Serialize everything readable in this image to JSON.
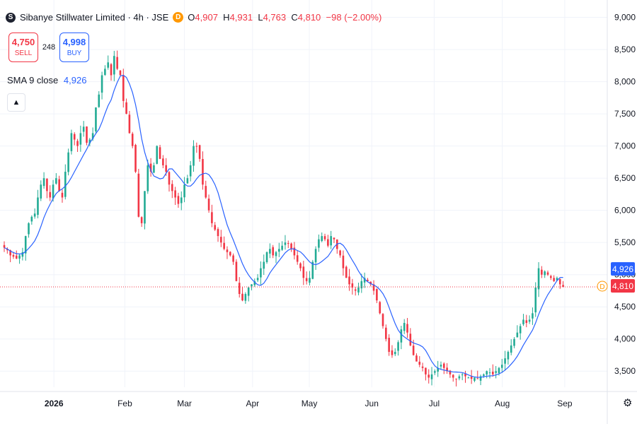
{
  "header": {
    "logo_letter": "S",
    "symbol": "Sibanye Stillwater Limited",
    "interval": "4h",
    "exchange": "JSE",
    "title_line": "Sibanye Stillwater Limited · 4h · JSE",
    "badge": "D",
    "o_label": "O",
    "o_value": "4,907",
    "h_label": "H",
    "h_value": "4,931",
    "l_label": "L",
    "l_value": "4,763",
    "c_label": "C",
    "c_value": "4,810",
    "change": "−98 (−2.00%)"
  },
  "trade": {
    "sell_price": "4,750",
    "sell_label": "SELL",
    "spread": "248",
    "buy_price": "4,998",
    "buy_label": "BUY"
  },
  "indicator": {
    "label": "SMA 9 close",
    "value": "4,926",
    "collapse_icon": "chevron-up-icon"
  },
  "price_scale": {
    "last_price_label": "4,810",
    "sma_label": "4,926",
    "dividend_marker": "D",
    "colors": {
      "up": "#22ab94",
      "down": "#f23645",
      "sma": "#2962ff",
      "last": "#f23645"
    }
  },
  "chart_data": {
    "type": "candlestick",
    "title": "Sibanye Stillwater Limited · 4h · JSE",
    "y_ticks": [
      3500,
      4000,
      4500,
      5000,
      5500,
      6000,
      6500,
      7000,
      7500,
      8000,
      8500,
      9000
    ],
    "y_tick_labels": [
      "3,500",
      "4,000",
      "4,500",
      "5,000",
      "5,500",
      "6,000",
      "6,500",
      "7,000",
      "7,500",
      "8,000",
      "8,500",
      "9,000"
    ],
    "ylim": [
      3250,
      9050
    ],
    "x_labels": [
      {
        "label": "2026",
        "t": 18,
        "bold": true
      },
      {
        "label": "Feb",
        "t": 43
      },
      {
        "label": "Mar",
        "t": 64
      },
      {
        "label": "Apr",
        "t": 88
      },
      {
        "label": "May",
        "t": 108
      },
      {
        "label": "Jun",
        "t": 130
      },
      {
        "label": "Jul",
        "t": 152
      },
      {
        "label": "Aug",
        "t": 176
      },
      {
        "label": "Sep",
        "t": 198
      }
    ],
    "xlim": [
      0,
      210
    ],
    "last_price": 4810,
    "sma_period": 9,
    "sma_last": 4926,
    "close_series": [
      5420,
      5380,
      5300,
      5280,
      5250,
      5300,
      5350,
      5600,
      5800,
      5900,
      5950,
      6200,
      6400,
      6500,
      6300,
      6200,
      6400,
      6500,
      6300,
      6200,
      6600,
      6900,
      7200,
      7100,
      7000,
      7200,
      7300,
      7050,
      7100,
      7200,
      7600,
      7800,
      8100,
      8200,
      8300,
      8100,
      8400,
      8200,
      8100,
      7700,
      7500,
      7200,
      7000,
      6600,
      5900,
      5800,
      6300,
      6700,
      6600,
      6700,
      7000,
      6800,
      6700,
      6600,
      6400,
      6300,
      6200,
      6100,
      6200,
      6400,
      6500,
      6700,
      7000,
      7000,
      6800,
      6400,
      6200,
      6000,
      5800,
      5700,
      5600,
      5500,
      5400,
      5350,
      5300,
      5200,
      4900,
      4700,
      4600,
      4700,
      4800,
      4850,
      4900,
      4950,
      5100,
      5200,
      5350,
      5400,
      5300,
      5350,
      5400,
      5450,
      5500,
      5480,
      5400,
      5300,
      5200,
      5100,
      4950,
      4900,
      4950,
      5200,
      5400,
      5550,
      5600,
      5550,
      5450,
      5600,
      5550,
      5400,
      5300,
      5100,
      4950,
      4850,
      4800,
      4750,
      4800,
      4900,
      4950,
      4900,
      4850,
      4750,
      4600,
      4400,
      4200,
      4000,
      3800,
      3750,
      3800,
      3950,
      4150,
      4250,
      4100,
      3900,
      3750,
      3650,
      3600,
      3550,
      3450,
      3400,
      3450,
      3500,
      3550,
      3600,
      3550,
      3500,
      3450,
      3400,
      3380,
      3420,
      3450,
      3420,
      3400,
      3380,
      3400,
      3380,
      3420,
      3450,
      3500,
      3480,
      3450,
      3500,
      3550,
      3600,
      3700,
      3800,
      3900,
      4000,
      4100,
      4200,
      4300,
      4250,
      4300,
      4400,
      4800,
      5100,
      5000,
      5050,
      5000,
      4950,
      4900,
      4950,
      4850,
      4810
    ]
  }
}
